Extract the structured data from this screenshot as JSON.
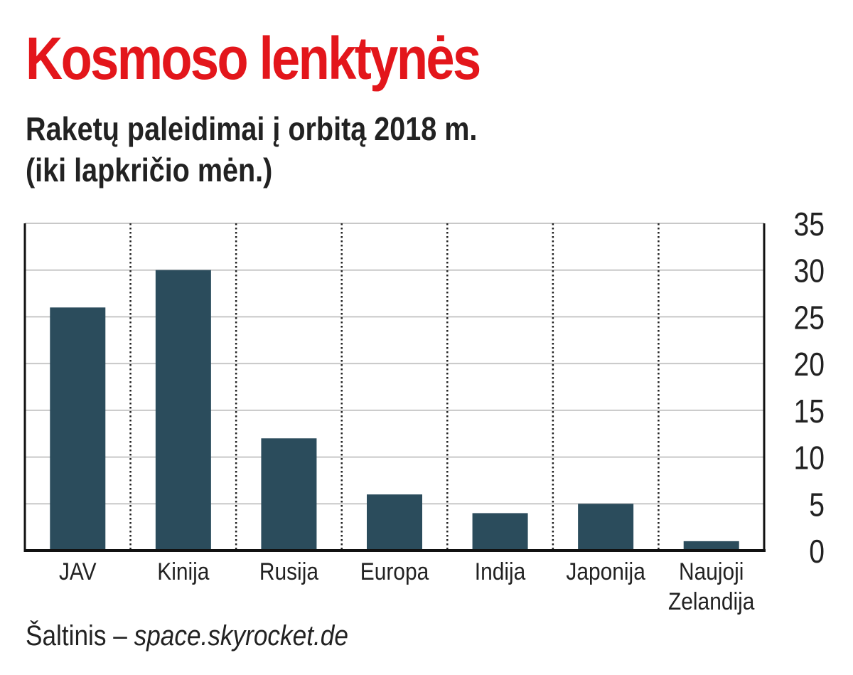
{
  "chart_data": {
    "type": "bar",
    "title": "Kosmoso lenktynės",
    "subtitle_line1": "Raketų paleidimai į orbitą 2018 m.",
    "subtitle_line2": "(iki lapkričio mėn.)",
    "categories": [
      [
        "JAV"
      ],
      [
        "Kinija"
      ],
      [
        "Rusija"
      ],
      [
        "Europa"
      ],
      [
        "Indija"
      ],
      [
        "Japonija"
      ],
      [
        "Naujoji",
        "Zelandija"
      ]
    ],
    "values": [
      26,
      30,
      12,
      6,
      4,
      5,
      1
    ],
    "ylim": [
      0,
      35
    ],
    "yticks": [
      0,
      5,
      10,
      15,
      20,
      25,
      30,
      35
    ],
    "xlabel": "",
    "ylabel": "",
    "grid": true,
    "bar_color": "#2b4c5c",
    "source_label": "Šaltinis – ",
    "source_value": "space.skyrocket.de"
  }
}
